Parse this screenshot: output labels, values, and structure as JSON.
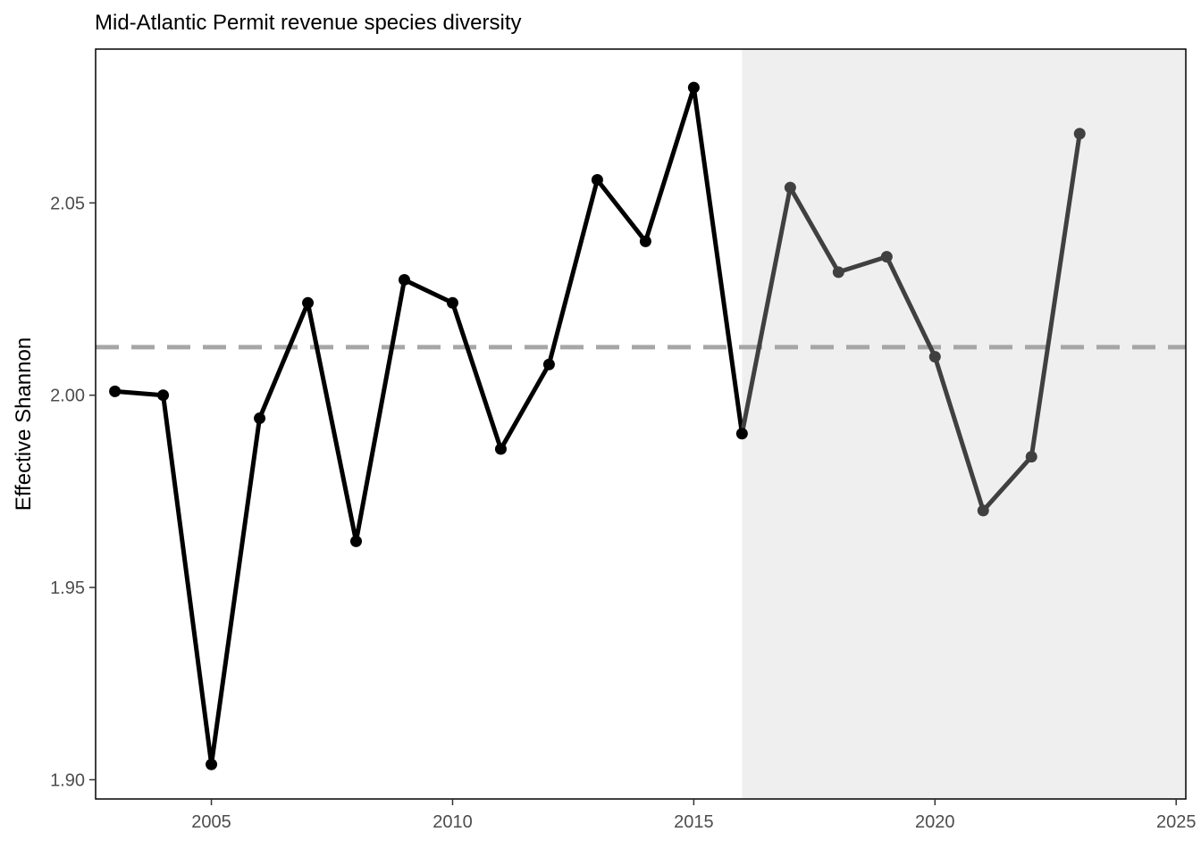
{
  "chart_data": {
    "type": "line",
    "title": "Mid-Atlantic Permit revenue species diversity",
    "xlabel": "",
    "ylabel": "Effective Shannon",
    "xlim": [
      2002.6,
      2025.2
    ],
    "ylim": [
      1.895,
      2.09
    ],
    "x_ticks": [
      2005,
      2010,
      2015,
      2020,
      2025
    ],
    "y_ticks": [
      1.9,
      1.95,
      2.0,
      2.05
    ],
    "x_tick_labels": [
      "2005",
      "2010",
      "2015",
      "2020",
      "2025"
    ],
    "y_tick_labels": [
      "1.90",
      "1.95",
      "2.00",
      "2.05"
    ],
    "mean_line": 2.0125,
    "shaded_region": {
      "x_start": 2016,
      "x_end": 2025.2
    },
    "grid": false,
    "series": [
      {
        "x": [
          2003,
          2004,
          2005,
          2006,
          2007,
          2008,
          2009,
          2010,
          2011,
          2012,
          2013,
          2014,
          2015,
          2016,
          2017,
          2018,
          2019,
          2020,
          2021,
          2022,
          2023
        ],
        "values": [
          2.001,
          2.0,
          1.904,
          1.994,
          2.024,
          1.962,
          2.03,
          2.024,
          1.986,
          2.008,
          2.056,
          2.04,
          2.08,
          1.99,
          2.054,
          2.032,
          2.036,
          2.01,
          1.97,
          1.984,
          2.068
        ],
        "colors": {
          "early": "#000000",
          "recent": "#404040"
        }
      }
    ],
    "colors": {
      "shade": "#efefef",
      "mean_line": "#a6a6a6",
      "axis": "#000000"
    }
  }
}
